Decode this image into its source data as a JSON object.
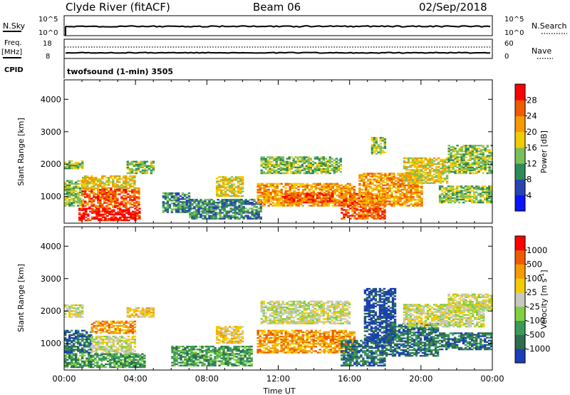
{
  "header": {
    "station": "Clyde River (fitACF)",
    "beam": "Beam 06",
    "date": "02/Sep/2018"
  },
  "top_panels": {
    "nsky_label": "N.Sky",
    "nsearch_label": "N.Search",
    "nsky_ticks": [
      "10^5",
      "10^0"
    ],
    "nsearch_ticks": [
      "10^5",
      "10^0"
    ],
    "freq_label_line1": "Freq.",
    "freq_label_line2": "[MHz]",
    "freq_ticks": [
      "18",
      "8"
    ],
    "nave_label": "Nave",
    "nave_ticks": [
      "60",
      "0"
    ],
    "cpid_label": "CPID",
    "cpid_value": "twofsound (1-min) 3505"
  },
  "chart_data": [
    {
      "type": "heatmap",
      "name": "power-panel",
      "ylabel": "Slant Range [km]",
      "xlabel": "",
      "ylim": [
        180,
        4600
      ],
      "yticks": [
        1000,
        2000,
        3000,
        4000
      ],
      "xlim": [
        0,
        24
      ],
      "x_unit": "hours UT",
      "colorbar": {
        "label": "Power [dB]",
        "ticks": [
          "4",
          "8",
          "12",
          "16",
          "20",
          "24",
          "28"
        ],
        "colors": [
          "#0a14ff",
          "#2844b0",
          "#2e8b57",
          "#7bbf5b",
          "#f2cc00",
          "#f59a00",
          "#f05a00",
          "#ff0000"
        ],
        "range": [
          0,
          32
        ]
      },
      "echo_regions": [
        {
          "t0": 0.0,
          "t1": 1.0,
          "r0": 700,
          "r1": 1500,
          "level": 3
        },
        {
          "t0": 0.8,
          "t1": 4.2,
          "r0": 250,
          "r1": 650,
          "level": 7
        },
        {
          "t0": 1.0,
          "t1": 4.2,
          "r0": 650,
          "r1": 1250,
          "level": 6
        },
        {
          "t0": 1.0,
          "t1": 4.0,
          "r0": 1250,
          "r1": 1650,
          "level": 4
        },
        {
          "t0": 0.0,
          "t1": 1.0,
          "r0": 1850,
          "r1": 2100,
          "level": 3
        },
        {
          "t0": 3.5,
          "t1": 5.0,
          "r0": 1700,
          "r1": 2100,
          "level": 3
        },
        {
          "t0": 5.5,
          "t1": 7.0,
          "r0": 500,
          "r1": 1100,
          "level": 2
        },
        {
          "t0": 7.0,
          "t1": 11.0,
          "r0": 300,
          "r1": 900,
          "level": 2
        },
        {
          "t0": 8.5,
          "t1": 10.0,
          "r0": 1000,
          "r1": 1600,
          "level": 4
        },
        {
          "t0": 10.8,
          "t1": 16.3,
          "r0": 700,
          "r1": 1400,
          "level": 5
        },
        {
          "t0": 11.0,
          "t1": 15.5,
          "r0": 1700,
          "r1": 2200,
          "level": 3
        },
        {
          "t0": 12.2,
          "t1": 15.0,
          "r0": 800,
          "r1": 1100,
          "level": 6
        },
        {
          "t0": 15.5,
          "t1": 18.0,
          "r0": 300,
          "r1": 1100,
          "level": 6
        },
        {
          "t0": 16.5,
          "t1": 20.0,
          "r0": 700,
          "r1": 1700,
          "level": 5
        },
        {
          "t0": 17.2,
          "t1": 18.0,
          "r0": 2300,
          "r1": 2800,
          "level": 3
        },
        {
          "t0": 19.0,
          "t1": 21.5,
          "r0": 1400,
          "r1": 2200,
          "level": 4
        },
        {
          "t0": 21.5,
          "t1": 24.0,
          "r0": 1700,
          "r1": 2600,
          "level": 3
        },
        {
          "t0": 21.0,
          "t1": 24.0,
          "r0": 800,
          "r1": 1300,
          "level": 3
        }
      ]
    },
    {
      "type": "heatmap",
      "name": "velocity-panel",
      "ylabel": "Slant Range [km]",
      "xlabel": "Time UT",
      "ylim": [
        180,
        4600
      ],
      "yticks": [
        1000,
        2000,
        3000,
        4000
      ],
      "xlim": [
        0,
        24
      ],
      "xticks": [
        "00:00",
        "04:00",
        "08:00",
        "12:00",
        "16:00",
        "20:00",
        "00:00"
      ],
      "colorbar": {
        "label": "Velocity [m s^-1]",
        "ticks": [
          "1000",
          "500",
          "100",
          "25",
          "-25",
          "-100",
          "-500",
          "-1000"
        ],
        "colors": [
          "#1a3fb5",
          "#2e6e4e",
          "#3a9a5a",
          "#80d040",
          "#c8c8c0",
          "#f2cc00",
          "#f59a00",
          "#f05a00",
          "#ff0000"
        ],
        "range": [
          -1000,
          1000
        ]
      },
      "echo_regions": [
        {
          "t0": 0.0,
          "t1": 1.0,
          "r0": 1800,
          "r1": 2200,
          "level": 4
        },
        {
          "t0": 0.0,
          "t1": 4.5,
          "r0": 250,
          "r1": 700,
          "level": 2
        },
        {
          "t0": 0.0,
          "t1": 1.5,
          "r0": 700,
          "r1": 1400,
          "level": 1
        },
        {
          "t0": 1.5,
          "t1": 4.0,
          "r0": 700,
          "r1": 1200,
          "level": 4
        },
        {
          "t0": 1.5,
          "t1": 4.0,
          "r0": 1300,
          "r1": 1700,
          "level": 6
        },
        {
          "t0": 3.5,
          "t1": 5.0,
          "r0": 1800,
          "r1": 2100,
          "level": 5
        },
        {
          "t0": 6.0,
          "t1": 10.5,
          "r0": 300,
          "r1": 900,
          "level": 2
        },
        {
          "t0": 8.5,
          "t1": 10.0,
          "r0": 1000,
          "r1": 1500,
          "level": 5
        },
        {
          "t0": 10.8,
          "t1": 16.3,
          "r0": 700,
          "r1": 1400,
          "level": 6
        },
        {
          "t0": 11.0,
          "t1": 16.0,
          "r0": 1600,
          "r1": 2300,
          "level": 4
        },
        {
          "t0": 15.5,
          "t1": 18.0,
          "r0": 300,
          "r1": 1100,
          "level": 1
        },
        {
          "t0": 16.8,
          "t1": 18.5,
          "r0": 1000,
          "r1": 2700,
          "level": 0
        },
        {
          "t0": 18.0,
          "t1": 21.0,
          "r0": 600,
          "r1": 1600,
          "level": 1
        },
        {
          "t0": 19.0,
          "t1": 23.5,
          "r0": 1500,
          "r1": 2200,
          "level": 4
        },
        {
          "t0": 21.5,
          "t1": 24.0,
          "r0": 2000,
          "r1": 2500,
          "level": 4
        },
        {
          "t0": 21.0,
          "t1": 24.0,
          "r0": 800,
          "r1": 1300,
          "level": 1
        }
      ]
    }
  ]
}
